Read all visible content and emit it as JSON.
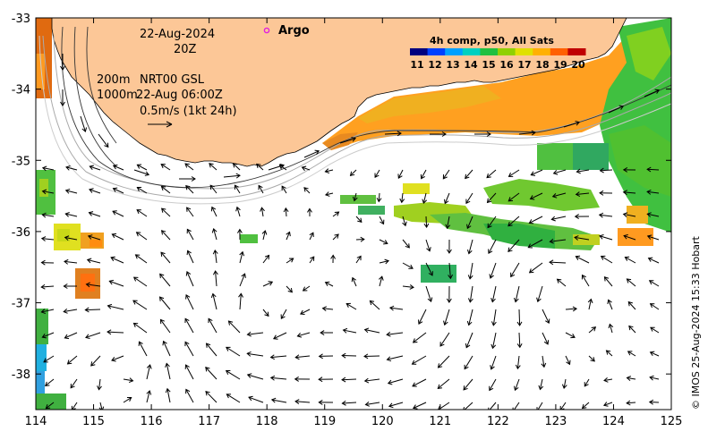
{
  "map": {
    "longitudes": [
      114,
      115,
      116,
      117,
      118,
      119,
      120,
      121,
      122,
      123,
      124,
      125
    ],
    "latitudes": [
      -33,
      -34,
      -35,
      -36,
      -37,
      -38
    ],
    "lon_range": [
      114,
      125
    ],
    "lat_range": [
      -38.5,
      -33
    ],
    "land_color": "#fcc797",
    "ocean_color": "#ffffff"
  },
  "annotations": {
    "date": "22-Aug-2024",
    "time": "20Z",
    "contour_200": "200m",
    "contour_1000": "1000m",
    "product": "NRT00 GSL",
    "product_time": "22-Aug 06:00Z",
    "scale_vector": "0.5m/s (1kt 24h)"
  },
  "legend": {
    "argo_label": "Argo",
    "argo_color": "#e020e0"
  },
  "colorbar": {
    "title": "4h comp, p50, All Sats",
    "labels": [
      "11",
      "12",
      "13",
      "14",
      "15",
      "16",
      "17",
      "18",
      "19",
      "20"
    ],
    "colors": [
      "#00007f",
      "#0040ff",
      "#00a0ff",
      "#00d0c0",
      "#20c040",
      "#90d000",
      "#e0e000",
      "#ffb000",
      "#ff6000",
      "#c00000"
    ]
  },
  "credit": "© IMOS 25-Aug-2024 15:33 Hobart"
}
